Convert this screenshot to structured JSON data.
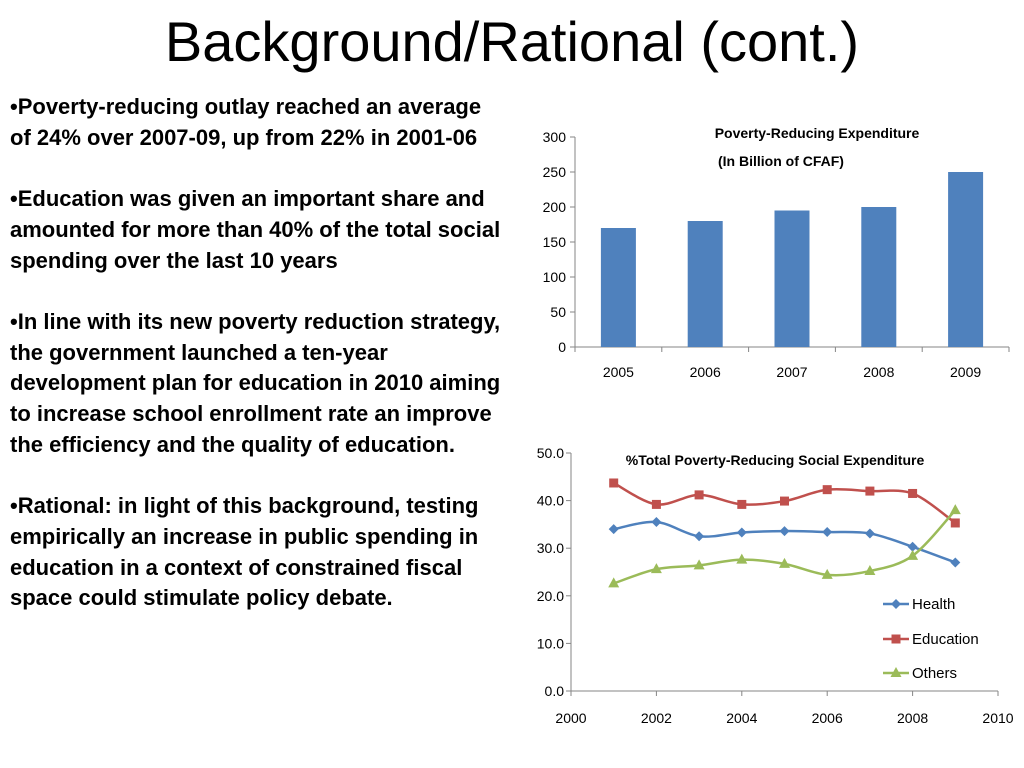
{
  "slide": {
    "title": "Background/Rational (cont.)",
    "bullets": [
      "•Poverty-reducing outlay reached an average of 24% over 2007-09, up from 22% in 2001-06",
      "•Education was given an important share and amounted for more than 40% of the total social spending over the last 10 years",
      "•In line with its new poverty reduction strategy, the government launched a ten-year development plan for education in 2010 aiming to increase school enrollment rate an improve the efficiency and the quality of education.",
      "•Rational: in light of this background, testing empirically an increase in public spending in education in a context of constrained fiscal space could stimulate policy debate."
    ]
  },
  "chart_data": [
    {
      "type": "bar",
      "title": "Poverty-Reducing Expenditure",
      "subtitle": "(In Billion of CFAF)",
      "categories": [
        "2005",
        "2006",
        "2007",
        "2008",
        "2009"
      ],
      "values": [
        170,
        180,
        195,
        200,
        250
      ],
      "ylim": [
        0,
        300
      ],
      "yticks": [
        "0",
        "50",
        "100",
        "150",
        "200",
        "250",
        "300"
      ],
      "xlabel": "",
      "ylabel": "",
      "color": "#4f81bd",
      "grid": false,
      "legend": "none"
    },
    {
      "type": "line",
      "title": "%Total Poverty-Reducing Social Expenditure",
      "xlim": [
        2000,
        2010
      ],
      "ylim": [
        0,
        50
      ],
      "xticks": [
        "2000",
        "2002",
        "2004",
        "2006",
        "2008",
        "2010"
      ],
      "yticks": [
        "0.0",
        "10.0",
        "20.0",
        "30.0",
        "40.0",
        "50.0"
      ],
      "x": [
        2001,
        2002,
        2003,
        2004,
        2005,
        2006,
        2007,
        2008,
        2009
      ],
      "series": [
        {
          "name": "Health",
          "color": "#4f81bd",
          "marker": "diamond",
          "values": [
            34.0,
            35.5,
            32.5,
            33.3,
            33.6,
            33.4,
            33.1,
            30.3,
            27.0
          ]
        },
        {
          "name": "Education",
          "color": "#c0504d",
          "marker": "square",
          "values": [
            43.7,
            39.2,
            41.2,
            39.2,
            39.9,
            42.3,
            42.0,
            41.5,
            35.3
          ]
        },
        {
          "name": "Others",
          "color": "#9bbb59",
          "marker": "triangle",
          "values": [
            22.6,
            25.6,
            26.4,
            27.6,
            26.7,
            24.4,
            25.2,
            28.4,
            38.0
          ]
        }
      ],
      "xlabel": "",
      "ylabel": "",
      "grid": false,
      "legend": "right"
    }
  ]
}
